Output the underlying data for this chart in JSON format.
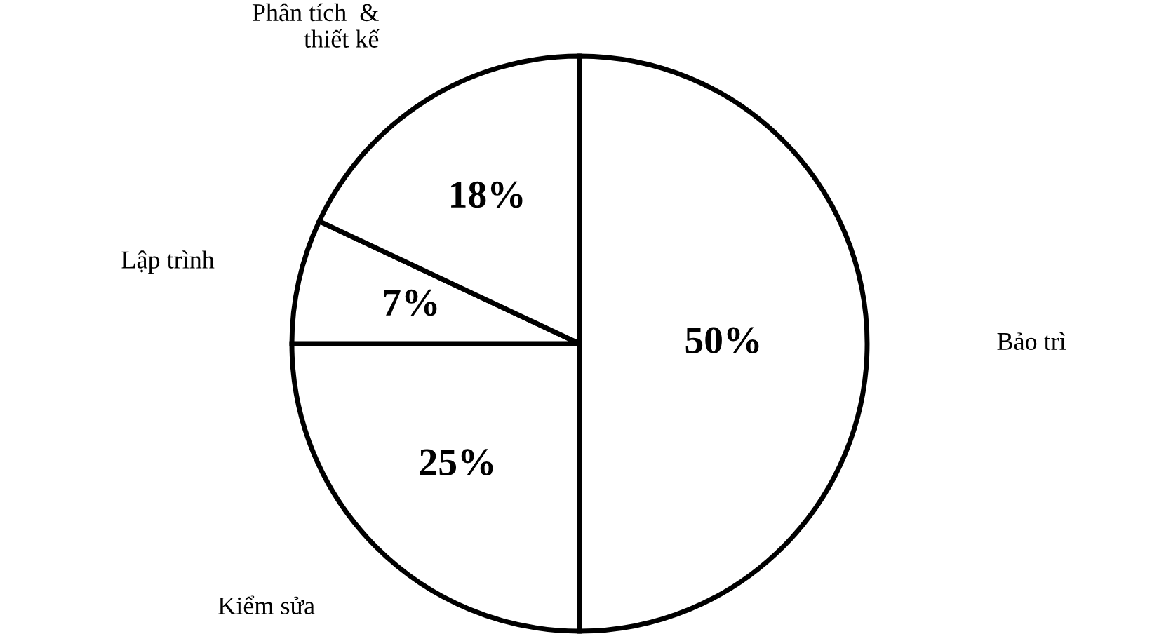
{
  "chart_data": {
    "type": "pie",
    "categories": [
      "Bảo trì",
      "Kiểm sửa",
      "Lập trình",
      "Phân tích  &\nthiết kế"
    ],
    "values": [
      50,
      25,
      7,
      18
    ],
    "value_labels": [
      "50%",
      "25%",
      "7%",
      "18%"
    ],
    "colors": [
      "#ffffff",
      "#ffffff",
      "#ffffff",
      "#ffffff"
    ],
    "legend": false
  }
}
